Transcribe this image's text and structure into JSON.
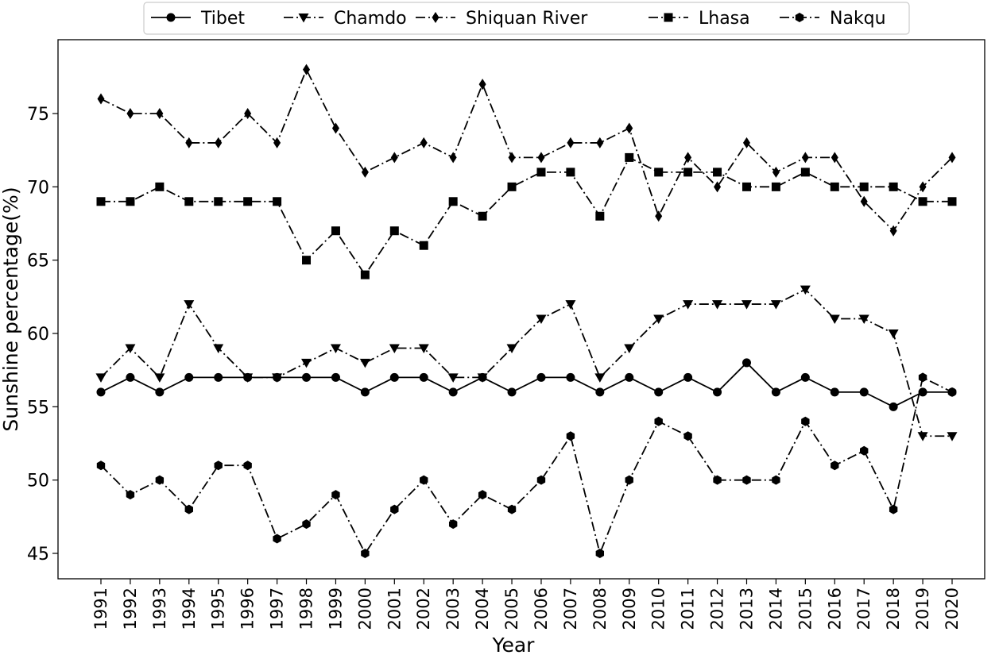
{
  "chart_data": {
    "type": "line",
    "title": "",
    "xlabel": "Year",
    "ylabel": "Sunshine percentage(%)",
    "ylim": [
      43.5,
      80
    ],
    "yticks": [
      45,
      50,
      55,
      60,
      65,
      70,
      75
    ],
    "x": [
      "1991",
      "1992",
      "1993",
      "1994",
      "1995",
      "1996",
      "1997",
      "1998",
      "1999",
      "2000",
      "2001",
      "2002",
      "2003",
      "2004",
      "2005",
      "2006",
      "2007",
      "2008",
      "2009",
      "2010",
      "2011",
      "2012",
      "2013",
      "2014",
      "2015",
      "2016",
      "2017",
      "2018",
      "2019",
      "2020"
    ],
    "legend_position": "top-center",
    "series": [
      {
        "name": "Tibet",
        "linestyle": "solid",
        "marker": "circle",
        "color": "#000000",
        "values": [
          56,
          57,
          56,
          57,
          57,
          57,
          57,
          57,
          57,
          56,
          57,
          57,
          56,
          57,
          56,
          57,
          57,
          56,
          57,
          56,
          57,
          56,
          58,
          56,
          57,
          56,
          56,
          55,
          56,
          56
        ]
      },
      {
        "name": "Chamdo",
        "linestyle": "dashdot",
        "marker": "triangle-down",
        "color": "#000000",
        "values": [
          57,
          59,
          57,
          62,
          59,
          57,
          57,
          58,
          59,
          58,
          59,
          59,
          57,
          57,
          59,
          61,
          62,
          57,
          59,
          61,
          62,
          62,
          62,
          62,
          63,
          61,
          61,
          60,
          53,
          53
        ]
      },
      {
        "name": "Shiquan River",
        "linestyle": "dashdot",
        "marker": "thin-diamond",
        "color": "#000000",
        "values": [
          76,
          75,
          75,
          73,
          73,
          75,
          73,
          78,
          74,
          71,
          72,
          73,
          72,
          77,
          72,
          72,
          73,
          73,
          74,
          68,
          72,
          70,
          73,
          71,
          72,
          72,
          69,
          67,
          70,
          72
        ]
      },
      {
        "name": "Lhasa",
        "linestyle": "dashdot",
        "marker": "square",
        "color": "#000000",
        "values": [
          69,
          69,
          70,
          69,
          69,
          69,
          69,
          65,
          67,
          64,
          67,
          66,
          69,
          68,
          70,
          71,
          71,
          68,
          72,
          71,
          71,
          71,
          70,
          70,
          71,
          70,
          70,
          70,
          69,
          69
        ]
      },
      {
        "name": "Nakqu",
        "linestyle": "dashdot",
        "marker": "hexagon",
        "color": "#000000",
        "values": [
          51,
          49,
          50,
          48,
          51,
          51,
          46,
          47,
          49,
          45,
          48,
          50,
          47,
          49,
          48,
          50,
          53,
          45,
          50,
          54,
          53,
          50,
          50,
          50,
          54,
          51,
          52,
          48,
          57,
          56
        ]
      }
    ]
  }
}
